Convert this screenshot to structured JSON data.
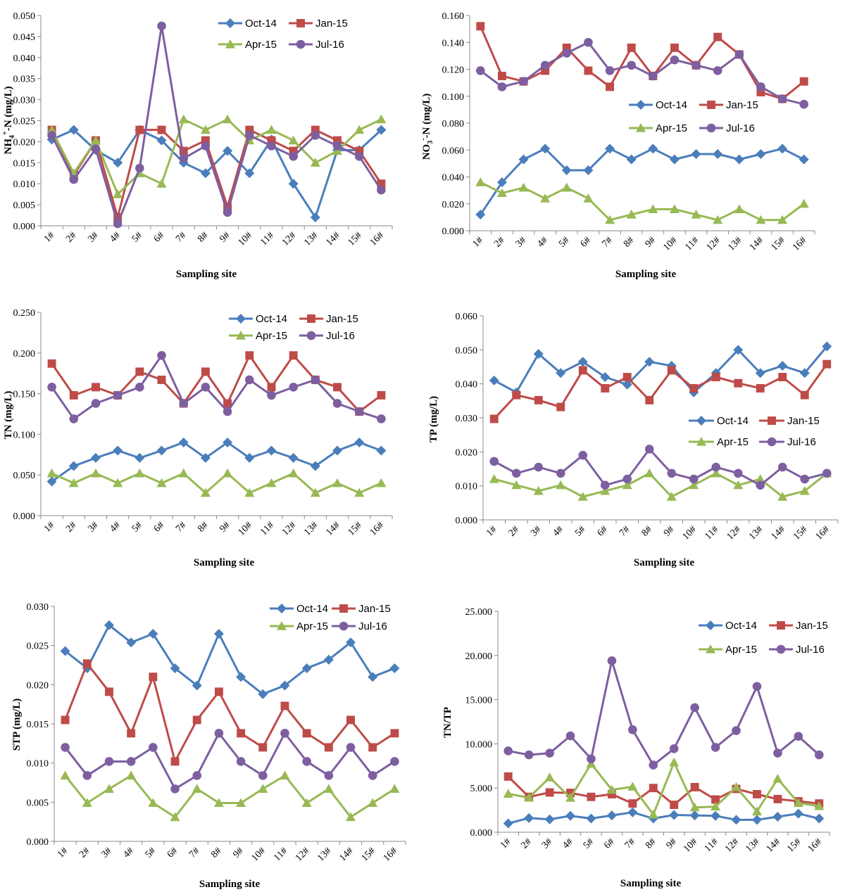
{
  "colors": {
    "Oct-14": "#4a7ebb",
    "Jan-15": "#be4b48",
    "Apr-15": "#98b954",
    "Jul-16": "#7d5fa0"
  },
  "markers": {
    "Oct-14": "diamond",
    "Jan-15": "square",
    "Apr-15": "triangle",
    "Jul-16": "circle"
  },
  "chart_data": [
    {
      "type": "line",
      "id": "nh4",
      "ylabel_parts": [
        "NH",
        "4",
        "+",
        "-N (mg/L)"
      ],
      "xlabel": "Sampling site",
      "ylim": [
        0,
        0.05
      ],
      "ytick_step": 0.005,
      "ytick_decimals": 3,
      "yticks": [
        "0.000",
        "0.005",
        "0.010",
        "0.015",
        "0.020",
        "0.025",
        "0.030",
        "0.035",
        "0.040",
        "0.045",
        "0.050"
      ],
      "categories": [
        "1#",
        "2#",
        "3#",
        "4#",
        "5#",
        "6#",
        "7#",
        "8#",
        "9#",
        "10#",
        "11#",
        "12#",
        "13#",
        "14#",
        "15#",
        "16#"
      ],
      "legend": [
        "Oct-14",
        "Jan-15",
        "Apr-15",
        "Jul-16"
      ],
      "series": [
        {
          "name": "Oct-14",
          "values": [
            0.0205,
            0.0228,
            0.018,
            0.015,
            0.0228,
            0.0203,
            0.015,
            0.0125,
            0.0178,
            0.0125,
            0.0205,
            0.01,
            0.002,
            0.018,
            0.018,
            0.0228
          ]
        },
        {
          "name": "Jan-15",
          "values": [
            0.0228,
            0.012,
            0.0203,
            0.002,
            0.0228,
            0.0228,
            0.0178,
            0.0203,
            0.0045,
            0.0228,
            0.0203,
            0.0178,
            0.0228,
            0.0203,
            0.0178,
            0.01
          ]
        },
        {
          "name": "Apr-15",
          "values": [
            0.0228,
            0.0125,
            0.0203,
            0.0075,
            0.0125,
            0.01,
            0.0253,
            0.0228,
            0.0253,
            0.0203,
            0.0228,
            0.0203,
            0.015,
            0.0178,
            0.0228,
            0.0253
          ]
        },
        {
          "name": "Jul-16",
          "values": [
            0.0215,
            0.011,
            0.0183,
            0.0005,
            0.0137,
            0.0475,
            0.016,
            0.019,
            0.0032,
            0.0215,
            0.019,
            0.0165,
            0.0215,
            0.019,
            0.0165,
            0.0085
          ]
        }
      ]
    },
    {
      "type": "line",
      "id": "no3",
      "ylabel_parts": [
        "NO",
        "3",
        "-",
        "-N (mg/L)"
      ],
      "xlabel": "Sampling site",
      "ylim": [
        0,
        0.16
      ],
      "yticks": [
        "0.000",
        "0.020",
        "0.040",
        "0.060",
        "0.080",
        "0.100",
        "0.120",
        "0.140",
        "0.160"
      ],
      "categories": [
        "1#",
        "2#",
        "3#",
        "4#",
        "5#",
        "6#",
        "7#",
        "8#",
        "9#",
        "10#",
        "11#",
        "12#",
        "13#",
        "14#",
        "15#",
        "16#"
      ],
      "legend": [
        "Oct-14",
        "Jan-15",
        "Apr-15",
        "Jul-16"
      ],
      "series": [
        {
          "name": "Oct-14",
          "values": [
            0.012,
            0.036,
            0.053,
            0.061,
            0.045,
            0.045,
            0.061,
            0.053,
            0.061,
            0.053,
            0.057,
            0.057,
            0.053,
            0.057,
            0.061,
            0.053
          ]
        },
        {
          "name": "Jan-15",
          "values": [
            0.152,
            0.115,
            0.111,
            0.119,
            0.136,
            0.119,
            0.107,
            0.136,
            0.115,
            0.136,
            0.123,
            0.144,
            0.131,
            0.103,
            0.098,
            0.111
          ]
        },
        {
          "name": "Apr-15",
          "values": [
            0.036,
            0.028,
            0.032,
            0.024,
            0.032,
            0.024,
            0.008,
            0.012,
            0.016,
            0.016,
            0.012,
            0.008,
            0.016,
            0.008,
            0.008,
            0.02
          ]
        },
        {
          "name": "Jul-16",
          "values": [
            0.119,
            0.107,
            0.111,
            0.123,
            0.132,
            0.14,
            0.119,
            0.123,
            0.115,
            0.127,
            0.123,
            0.119,
            0.131,
            0.107,
            0.098,
            0.094
          ]
        }
      ]
    },
    {
      "type": "line",
      "id": "tn",
      "ylabel_parts": [
        "TN (mg/L)"
      ],
      "xlabel": "Sampling site",
      "ylim": [
        0,
        0.25
      ],
      "yticks": [
        "0.000",
        "0.050",
        "0.100",
        "0.150",
        "0.200",
        "0.250"
      ],
      "categories": [
        "1#",
        "2#",
        "3#",
        "4#",
        "5#",
        "6#",
        "7#",
        "8#",
        "9#",
        "10#",
        "11#",
        "12#",
        "13#",
        "14#",
        "15#",
        "16#"
      ],
      "legend": [
        "Oct-14",
        "Jan-15",
        "Apr-15",
        "Jul-16"
      ],
      "series": [
        {
          "name": "Oct-14",
          "values": [
            0.042,
            0.061,
            0.071,
            0.08,
            0.071,
            0.08,
            0.09,
            0.071,
            0.09,
            0.071,
            0.08,
            0.071,
            0.061,
            0.08,
            0.09,
            0.08
          ]
        },
        {
          "name": "Jan-15",
          "values": [
            0.187,
            0.148,
            0.158,
            0.148,
            0.177,
            0.167,
            0.138,
            0.177,
            0.138,
            0.197,
            0.158,
            0.197,
            0.167,
            0.158,
            0.128,
            0.148
          ]
        },
        {
          "name": "Apr-15",
          "values": [
            0.052,
            0.04,
            0.052,
            0.04,
            0.052,
            0.04,
            0.052,
            0.028,
            0.052,
            0.028,
            0.04,
            0.052,
            0.028,
            0.04,
            0.028,
            0.04
          ]
        },
        {
          "name": "Jul-16",
          "values": [
            0.158,
            0.119,
            0.138,
            0.148,
            0.158,
            0.197,
            0.138,
            0.158,
            0.128,
            0.167,
            0.148,
            0.158,
            0.167,
            0.138,
            0.128,
            0.119
          ]
        }
      ]
    },
    {
      "type": "line",
      "id": "tp",
      "ylabel_parts": [
        "TP (mg/L)"
      ],
      "xlabel": "Sampling site",
      "ylim": [
        0,
        0.06
      ],
      "yticks": [
        "0.000",
        "0.010",
        "0.020",
        "0.030",
        "0.040",
        "0.050",
        "0.060"
      ],
      "categories": [
        "1#",
        "2#",
        "3#",
        "4#",
        "5#",
        "6#",
        "7#",
        "8#",
        "9#",
        "10#",
        "11#",
        "12#",
        "13#",
        "14#",
        "15#",
        "16#"
      ],
      "legend": [
        "Oct-14",
        "Jan-15",
        "Apr-15",
        "Jul-16"
      ],
      "series": [
        {
          "name": "Oct-14",
          "values": [
            0.041,
            0.0375,
            0.0488,
            0.0432,
            0.0465,
            0.042,
            0.0398,
            0.0465,
            0.0453,
            0.0375,
            0.0432,
            0.05,
            0.0432,
            0.0453,
            0.0432,
            0.051
          ]
        },
        {
          "name": "Jan-15",
          "values": [
            0.0297,
            0.0367,
            0.0352,
            0.0332,
            0.044,
            0.0387,
            0.042,
            0.0352,
            0.044,
            0.0387,
            0.042,
            0.0402,
            0.0387,
            0.042,
            0.0367,
            0.0458
          ]
        },
        {
          "name": "Apr-15",
          "values": [
            0.012,
            0.0102,
            0.0085,
            0.0102,
            0.0068,
            0.0085,
            0.0102,
            0.0137,
            0.0068,
            0.0102,
            0.0137,
            0.0102,
            0.012,
            0.0068,
            0.0085,
            0.0137
          ]
        },
        {
          "name": "Jul-16",
          "values": [
            0.0172,
            0.0137,
            0.0155,
            0.0137,
            0.019,
            0.0102,
            0.012,
            0.0208,
            0.0137,
            0.012,
            0.0155,
            0.0137,
            0.0102,
            0.0155,
            0.012,
            0.0137
          ]
        }
      ]
    },
    {
      "type": "line",
      "id": "stp",
      "ylabel_parts": [
        "STP (mg/L)"
      ],
      "xlabel": "Sampling site",
      "ylim": [
        0,
        0.03
      ],
      "yticks": [
        "0.000",
        "0.005",
        "0.010",
        "0.015",
        "0.020",
        "0.025",
        "0.030"
      ],
      "categories": [
        "1#",
        "2#",
        "3#",
        "4#",
        "5#",
        "6#",
        "7#",
        "8#",
        "9#",
        "10#",
        "11#",
        "12#",
        "13#",
        "14#",
        "15#",
        "16#"
      ],
      "legend": [
        "Oct-14",
        "Jan-15",
        "Apr-15",
        "Jul-16"
      ],
      "series": [
        {
          "name": "Oct-14",
          "values": [
            0.0243,
            0.0221,
            0.0276,
            0.0254,
            0.0265,
            0.0221,
            0.0199,
            0.0265,
            0.021,
            0.0188,
            0.0199,
            0.0221,
            0.0232,
            0.0254,
            0.021,
            0.0221
          ]
        },
        {
          "name": "Jan-15",
          "values": [
            0.0155,
            0.0227,
            0.0191,
            0.0138,
            0.021,
            0.0102,
            0.0155,
            0.0191,
            0.0138,
            0.012,
            0.0173,
            0.0138,
            0.012,
            0.0155,
            0.012,
            0.0138
          ]
        },
        {
          "name": "Apr-15",
          "values": [
            0.0084,
            0.0049,
            0.0067,
            0.0084,
            0.0049,
            0.0031,
            0.0067,
            0.0049,
            0.0049,
            0.0067,
            0.0084,
            0.0049,
            0.0067,
            0.0031,
            0.0049,
            0.0067
          ]
        },
        {
          "name": "Jul-16",
          "values": [
            0.012,
            0.0084,
            0.0102,
            0.0102,
            0.012,
            0.0067,
            0.0084,
            0.0138,
            0.0102,
            0.0084,
            0.0138,
            0.0102,
            0.0084,
            0.012,
            0.0084,
            0.0102
          ]
        }
      ]
    },
    {
      "type": "line",
      "id": "tntp",
      "ylabel_parts": [
        "TN/TP"
      ],
      "xlabel": "Sampling site",
      "ylim": [
        0,
        25
      ],
      "yticks": [
        "0.000",
        "5.000",
        "10.000",
        "15.000",
        "20.000",
        "25.000"
      ],
      "categories": [
        "1#",
        "2#",
        "3#",
        "4#",
        "5#",
        "6#",
        "7#",
        "8#",
        "9#",
        "10#",
        "11#",
        "12#",
        "13#",
        "14#",
        "15#",
        "16#"
      ],
      "legend": [
        "Oct-14",
        "Jan-15",
        "Apr-15",
        "Jul-16"
      ],
      "series": [
        {
          "name": "Oct-14",
          "values": [
            1.0,
            1.6,
            1.45,
            1.85,
            1.55,
            1.9,
            2.25,
            1.55,
            1.95,
            1.9,
            1.85,
            1.4,
            1.4,
            1.75,
            2.1,
            1.55
          ]
        },
        {
          "name": "Jan-15",
          "values": [
            6.3,
            4.0,
            4.5,
            4.45,
            4.0,
            4.3,
            3.25,
            5.0,
            3.1,
            5.1,
            3.7,
            4.9,
            4.3,
            3.75,
            3.5,
            3.25
          ]
        },
        {
          "name": "Apr-15",
          "values": [
            4.35,
            3.9,
            6.2,
            3.9,
            7.75,
            4.8,
            5.15,
            2.0,
            7.9,
            2.8,
            2.9,
            5.1,
            2.35,
            6.05,
            3.3,
            2.95
          ]
        },
        {
          "name": "Jul-16",
          "values": [
            9.2,
            8.75,
            8.95,
            10.9,
            8.3,
            19.4,
            11.6,
            7.6,
            9.45,
            14.1,
            9.6,
            11.5,
            16.5,
            8.95,
            10.85,
            8.75
          ]
        }
      ]
    }
  ]
}
